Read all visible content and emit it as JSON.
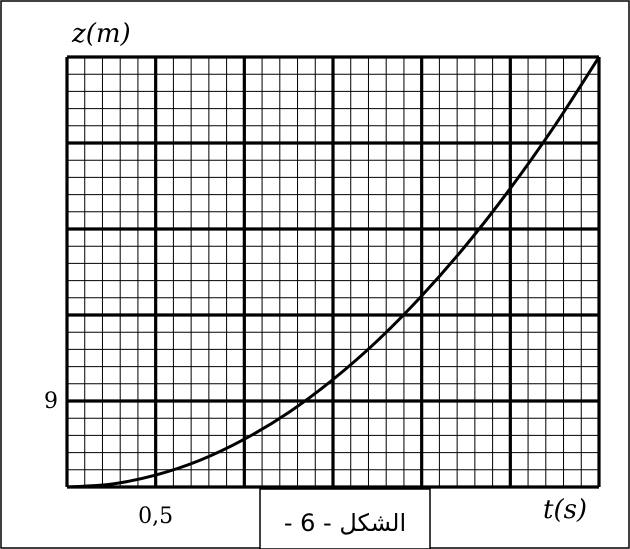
{
  "chart_data": {
    "type": "line",
    "xlabel": "t(s)",
    "ylabel": "z(m)",
    "x_tick_labels": [
      {
        "value": 0.5,
        "text": "0,5"
      }
    ],
    "y_tick_labels": [
      {
        "value": 9,
        "text": "9"
      }
    ],
    "xlim": [
      0,
      3
    ],
    "ylim": [
      0,
      45
    ],
    "grid": true,
    "grid_major_x": 0.5,
    "grid_major_y": 9,
    "grid_minor_per_major": 5,
    "series": [
      {
        "x": [
          0,
          0.25,
          0.5,
          0.75,
          1.0,
          1.25,
          1.5,
          1.75,
          2.0,
          2.25,
          2.5,
          2.75,
          3.0
        ],
        "y": [
          0,
          0.3,
          1.25,
          2.8,
          5.0,
          7.8,
          11.25,
          15.3,
          20.0,
          25.3,
          31.25,
          37.8,
          45.0
        ],
        "color": "#000000"
      }
    ]
  },
  "caption": "الشكل - 6 -"
}
